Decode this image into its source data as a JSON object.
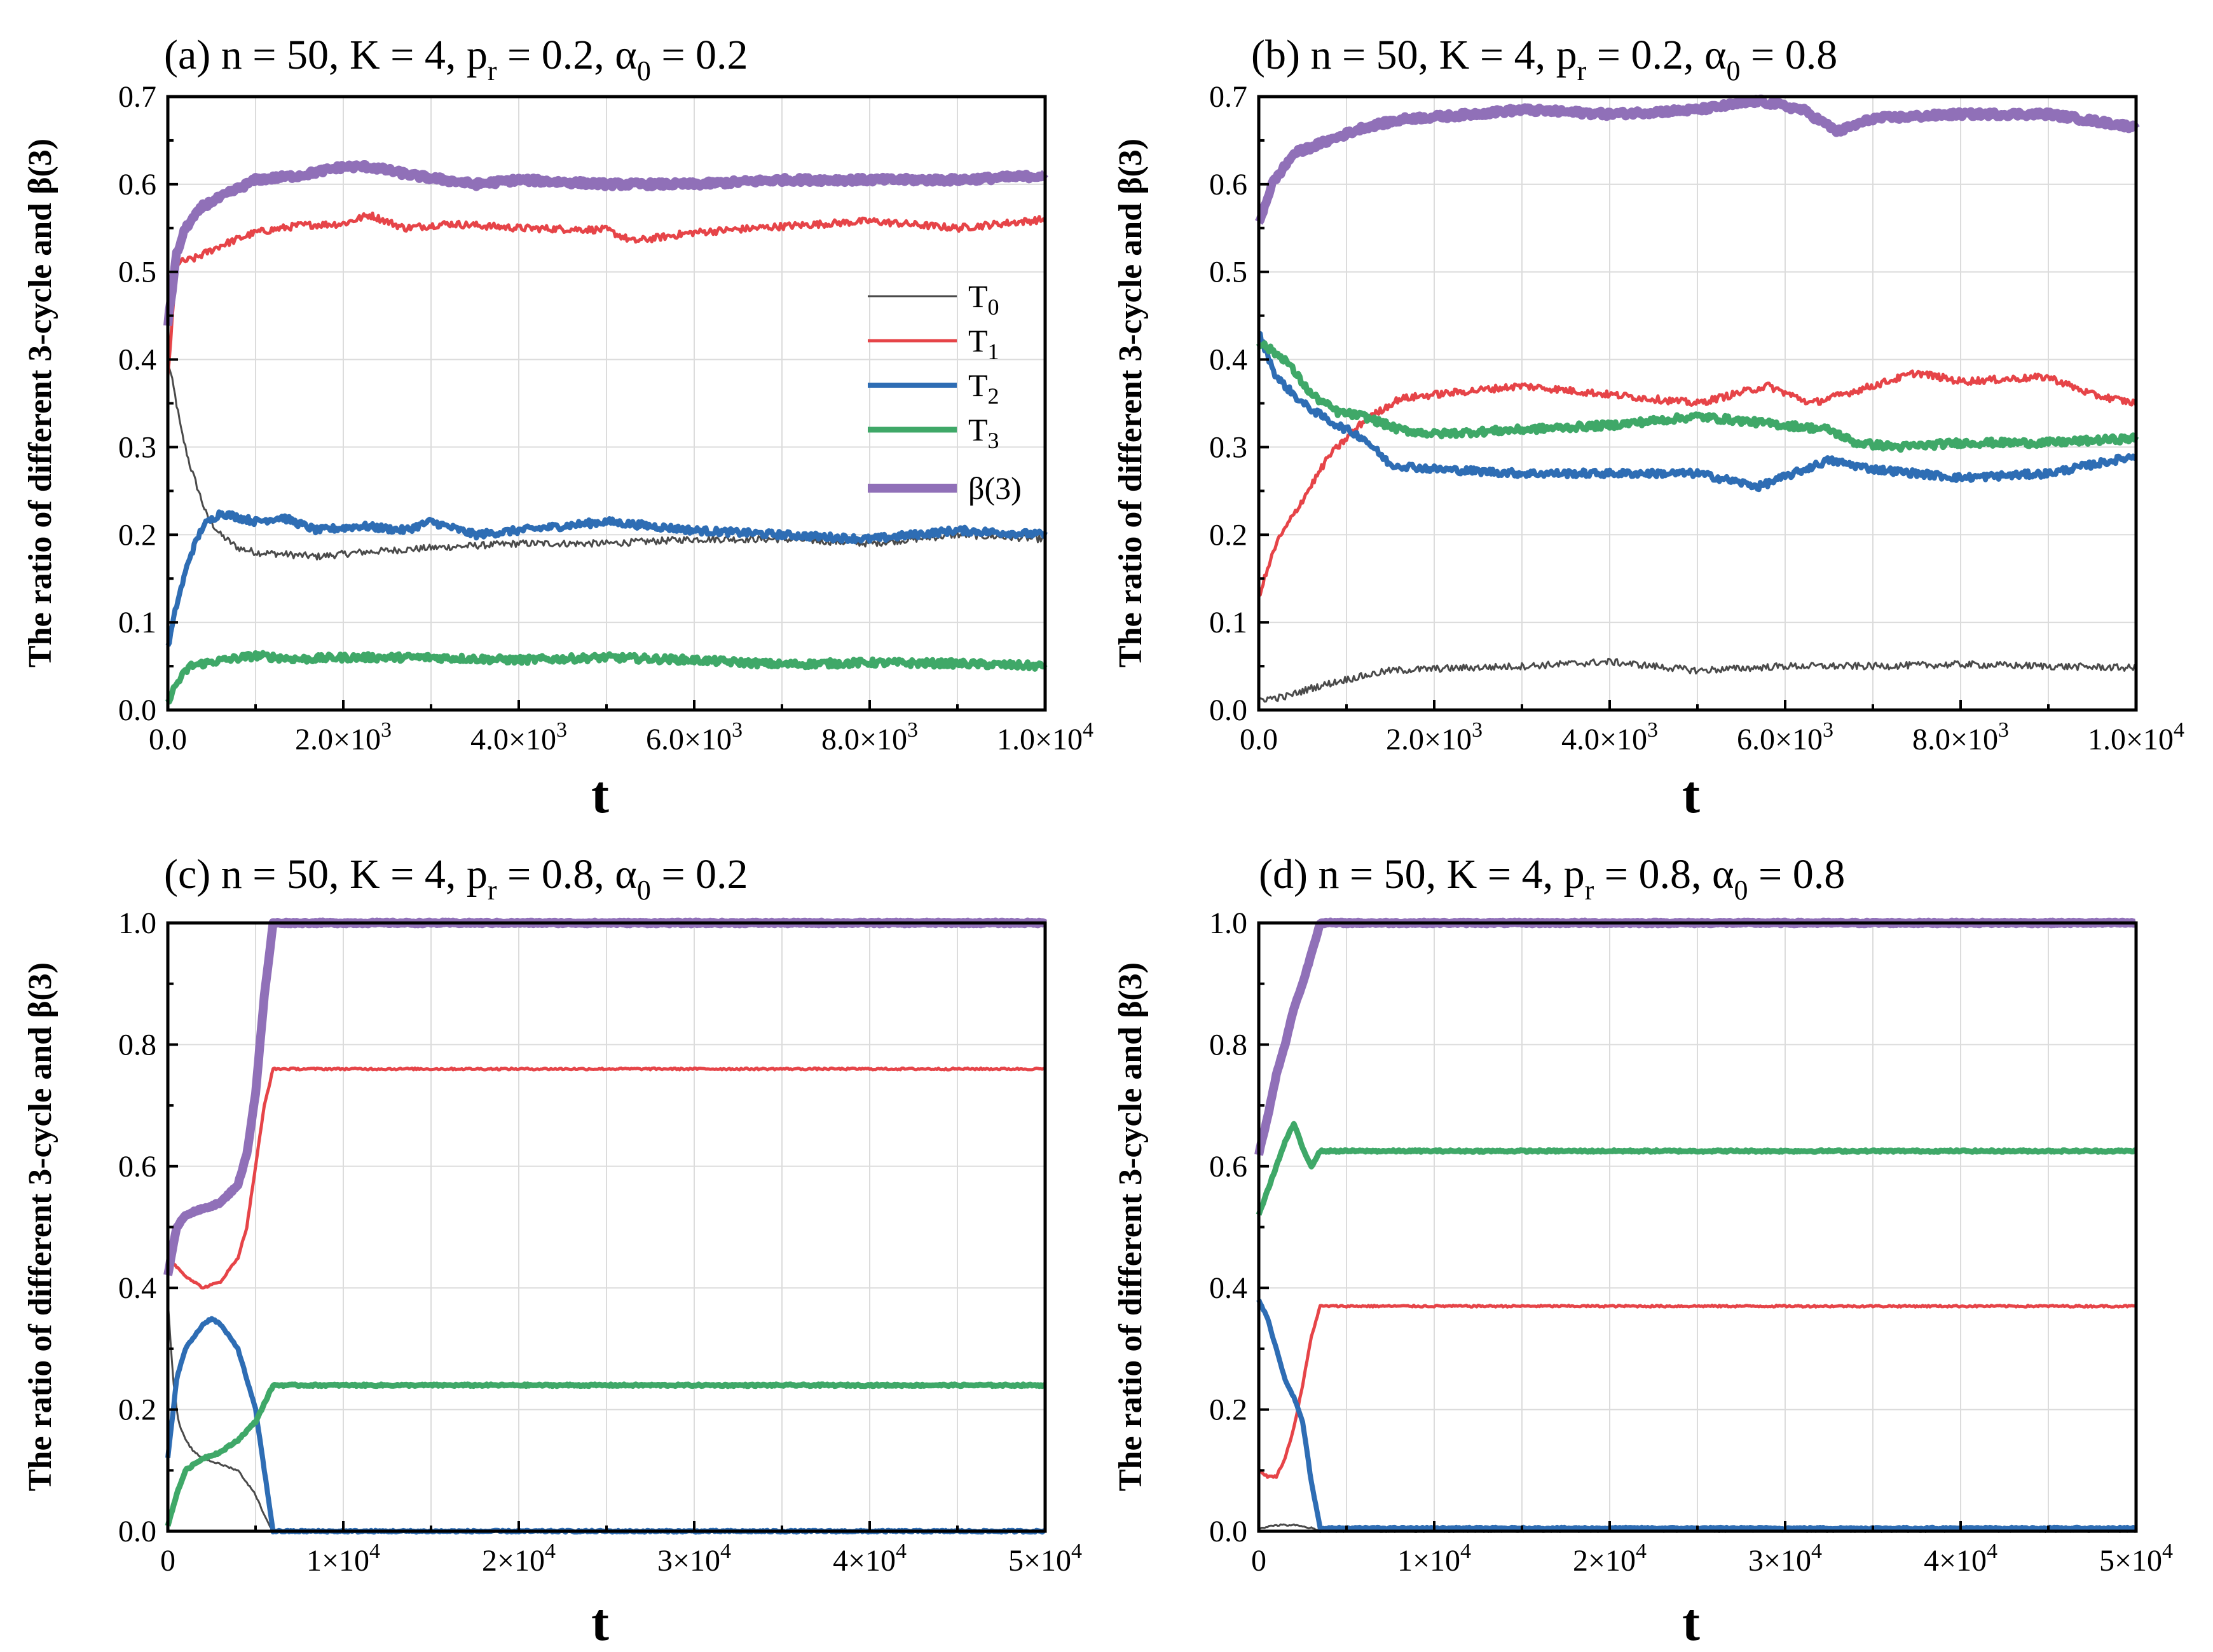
{
  "chart_data": [
    {
      "type": "line",
      "label": "(a)",
      "title_parts": {
        "n": "n = 50, K = 4, p",
        "sub_r": "r",
        "pr": " = 0.2, α",
        "sub_0": "0",
        "alpha": " = 0.2"
      },
      "ylabel": "The ratio of different 3-cycle and β(3)",
      "xlabel": "t",
      "xlim": [
        0,
        10000
      ],
      "ylim": [
        0,
        0.7
      ],
      "xticks": [
        0,
        2000,
        4000,
        6000,
        8000,
        10000
      ],
      "xtick_labels": [
        [
          "0.0",
          ""
        ],
        [
          "2.0×10",
          "3"
        ],
        [
          "4.0×10",
          "3"
        ],
        [
          "6.0×10",
          "3"
        ],
        [
          "8.0×10",
          "3"
        ],
        [
          "1.0×10",
          "4"
        ]
      ],
      "yticks": [
        0,
        0.1,
        0.2,
        0.3,
        0.4,
        0.5,
        0.6,
        0.7
      ],
      "ytick_labels": [
        "0.0",
        "0.1",
        "0.2",
        "0.3",
        "0.4",
        "0.5",
        "0.6",
        "0.7"
      ],
      "legend": true,
      "series": [
        {
          "name": "T0",
          "x": [
            0,
            80,
            150,
            250,
            350,
            450,
            600,
            800,
            1000,
            1300,
            1700,
            2200,
            3000,
            4000,
            5000,
            6000,
            7000,
            8000,
            9000,
            10000
          ],
          "values": [
            0.4,
            0.36,
            0.32,
            0.28,
            0.25,
            0.22,
            0.2,
            0.185,
            0.18,
            0.178,
            0.175,
            0.18,
            0.185,
            0.19,
            0.19,
            0.195,
            0.195,
            0.19,
            0.2,
            0.195
          ]
        },
        {
          "name": "T1",
          "x": [
            0,
            100,
            300,
            600,
            1000,
            1500,
            2000,
            2300,
            2700,
            3200,
            4000,
            5000,
            5300,
            6000,
            7000,
            8000,
            9000,
            10000
          ],
          "values": [
            0.38,
            0.51,
            0.515,
            0.53,
            0.545,
            0.553,
            0.555,
            0.565,
            0.55,
            0.555,
            0.55,
            0.548,
            0.535,
            0.545,
            0.552,
            0.558,
            0.55,
            0.56
          ]
        },
        {
          "name": "T2",
          "x": [
            0,
            100,
            250,
            400,
            600,
            800,
            1000,
            1300,
            1700,
            2200,
            2700,
            3000,
            3500,
            4000,
            4500,
            5000,
            5500,
            6000,
            7000,
            8000,
            9000,
            10000
          ],
          "values": [
            0.07,
            0.12,
            0.175,
            0.21,
            0.225,
            0.22,
            0.215,
            0.22,
            0.205,
            0.21,
            0.205,
            0.215,
            0.2,
            0.205,
            0.21,
            0.215,
            0.21,
            0.205,
            0.2,
            0.195,
            0.205,
            0.2
          ]
        },
        {
          "name": "T3",
          "x": [
            0,
            100,
            250,
            500,
            1000,
            1500,
            2000,
            3000,
            4000,
            5000,
            6000,
            7000,
            8000,
            9000,
            10000
          ],
          "values": [
            0.01,
            0.03,
            0.05,
            0.055,
            0.062,
            0.058,
            0.06,
            0.06,
            0.057,
            0.06,
            0.057,
            0.052,
            0.054,
            0.053,
            0.05
          ]
        },
        {
          "name": "β(3)",
          "x": [
            0,
            100,
            200,
            400,
            700,
            1000,
            1500,
            2000,
            2300,
            2800,
            3500,
            4000,
            5000,
            6000,
            7000,
            8000,
            9000,
            10000
          ],
          "values": [
            0.44,
            0.52,
            0.55,
            0.575,
            0.59,
            0.605,
            0.61,
            0.62,
            0.62,
            0.61,
            0.6,
            0.605,
            0.6,
            0.6,
            0.605,
            0.605,
            0.605,
            0.61
          ]
        }
      ]
    },
    {
      "type": "line",
      "label": "(b)",
      "title_parts": {
        "n": "n = 50, K = 4, p",
        "sub_r": "r",
        "pr": " = 0.2, α",
        "sub_0": "0",
        "alpha": " = 0.8"
      },
      "ylabel": "The ratio of different 3-cycle and β(3)",
      "xlabel": "t",
      "xlim": [
        0,
        10000
      ],
      "ylim": [
        0,
        0.7
      ],
      "xticks": [
        0,
        2000,
        4000,
        6000,
        8000,
        10000
      ],
      "xtick_labels": [
        [
          "0.0",
          ""
        ],
        [
          "2.0×10",
          "3"
        ],
        [
          "4.0×10",
          "3"
        ],
        [
          "6.0×10",
          "3"
        ],
        [
          "8.0×10",
          "3"
        ],
        [
          "1.0×10",
          "4"
        ]
      ],
      "yticks": [
        0,
        0.1,
        0.2,
        0.3,
        0.4,
        0.5,
        0.6,
        0.7
      ],
      "ytick_labels": [
        "0.0",
        "0.1",
        "0.2",
        "0.3",
        "0.4",
        "0.5",
        "0.6",
        "0.7"
      ],
      "legend": false,
      "series": [
        {
          "name": "T0",
          "x": [
            0,
            300,
            600,
            1000,
            1500,
            2000,
            3000,
            4000,
            5000,
            6000,
            7000,
            8000,
            9000,
            10000
          ],
          "values": [
            0.012,
            0.015,
            0.025,
            0.035,
            0.045,
            0.047,
            0.05,
            0.055,
            0.045,
            0.05,
            0.05,
            0.052,
            0.05,
            0.048
          ]
        },
        {
          "name": "T1",
          "x": [
            0,
            200,
            500,
            800,
            1200,
            1600,
            2000,
            2500,
            3000,
            4000,
            5000,
            5800,
            6300,
            7000,
            7500,
            8000,
            9000,
            9500,
            10000
          ],
          "values": [
            0.13,
            0.19,
            0.24,
            0.29,
            0.33,
            0.355,
            0.36,
            0.365,
            0.37,
            0.36,
            0.35,
            0.37,
            0.35,
            0.37,
            0.385,
            0.375,
            0.38,
            0.36,
            0.35
          ]
        },
        {
          "name": "T2",
          "x": [
            0,
            200,
            500,
            800,
            1200,
            1500,
            2000,
            3000,
            4000,
            5000,
            5700,
            6500,
            7000,
            8000,
            9000,
            10000
          ],
          "values": [
            0.43,
            0.38,
            0.35,
            0.33,
            0.31,
            0.28,
            0.275,
            0.27,
            0.27,
            0.27,
            0.255,
            0.285,
            0.275,
            0.265,
            0.27,
            0.29
          ]
        },
        {
          "name": "T3",
          "x": [
            0,
            300,
            600,
            900,
            1200,
            1600,
            2000,
            3000,
            4000,
            5000,
            6000,
            6500,
            6800,
            7300,
            8000,
            9000,
            10000
          ],
          "values": [
            0.42,
            0.4,
            0.36,
            0.34,
            0.335,
            0.32,
            0.315,
            0.32,
            0.325,
            0.335,
            0.325,
            0.32,
            0.305,
            0.3,
            0.305,
            0.305,
            0.31
          ]
        },
        {
          "name": "β(3)",
          "x": [
            0,
            150,
            400,
            800,
            1200,
            1700,
            2200,
            3000,
            4000,
            5000,
            5700,
            6200,
            6600,
            7000,
            8000,
            9000,
            10000
          ],
          "values": [
            0.555,
            0.6,
            0.635,
            0.65,
            0.665,
            0.675,
            0.678,
            0.685,
            0.68,
            0.685,
            0.695,
            0.685,
            0.66,
            0.675,
            0.68,
            0.68,
            0.665
          ]
        }
      ]
    },
    {
      "type": "line",
      "label": "(c)",
      "title_parts": {
        "n": "n = 50, K = 4, p",
        "sub_r": "r",
        "pr": " = 0.8, α",
        "sub_0": "0",
        "alpha": " = 0.2"
      },
      "ylabel": "The ratio of different 3-cycle and β(3)",
      "xlabel": "t",
      "xlim": [
        0,
        50000
      ],
      "ylim": [
        0,
        1.0
      ],
      "xticks": [
        0,
        10000,
        20000,
        30000,
        40000,
        50000
      ],
      "xtick_labels": [
        [
          "0",
          ""
        ],
        [
          "1×10",
          "4"
        ],
        [
          "2×10",
          "4"
        ],
        [
          "3×10",
          "4"
        ],
        [
          "4×10",
          "4"
        ],
        [
          "5×10",
          "4"
        ]
      ],
      "yticks": [
        0,
        0.2,
        0.4,
        0.6,
        0.8,
        1.0
      ],
      "ytick_labels": [
        "0.0",
        "0.2",
        "0.4",
        "0.6",
        "0.8",
        "1.0"
      ],
      "legend": false,
      "series": [
        {
          "name": "T0",
          "x": [
            0,
            300,
            600,
            1000,
            1500,
            2000,
            3000,
            4000,
            5000,
            5600,
            6000,
            50000
          ],
          "values": [
            0.38,
            0.25,
            0.18,
            0.15,
            0.13,
            0.12,
            0.11,
            0.1,
            0.06,
            0.02,
            0,
            0
          ]
        },
        {
          "name": "T1",
          "x": [
            0,
            1000,
            2000,
            3000,
            4000,
            4500,
            5000,
            5500,
            6000,
            50000
          ],
          "values": [
            0.45,
            0.42,
            0.4,
            0.41,
            0.45,
            0.5,
            0.6,
            0.7,
            0.76,
            0.76
          ]
        },
        {
          "name": "T2",
          "x": [
            0,
            500,
            1000,
            2000,
            2500,
            3000,
            4000,
            5000,
            5600,
            6000,
            50000
          ],
          "values": [
            0.12,
            0.25,
            0.3,
            0.34,
            0.35,
            0.34,
            0.3,
            0.2,
            0.08,
            0,
            0
          ]
        },
        {
          "name": "T3",
          "x": [
            0,
            500,
            1000,
            2000,
            3000,
            4000,
            5000,
            6000,
            50000
          ],
          "values": [
            0.01,
            0.06,
            0.1,
            0.12,
            0.13,
            0.15,
            0.18,
            0.24,
            0.24
          ]
        },
        {
          "name": "β(3)",
          "x": [
            0,
            500,
            1000,
            2000,
            3000,
            4000,
            4500,
            5000,
            5500,
            6000,
            50000
          ],
          "values": [
            0.42,
            0.5,
            0.52,
            0.53,
            0.54,
            0.57,
            0.62,
            0.72,
            0.88,
            1.0,
            1.0
          ]
        }
      ]
    },
    {
      "type": "line",
      "label": "(d)",
      "title_parts": {
        "n": "n = 50, K = 4, p",
        "sub_r": "r",
        "pr": " = 0.8, α",
        "sub_0": "0",
        "alpha": " = 0.8"
      },
      "ylabel": "The ratio of different 3-cycle and β(3)",
      "xlabel": "t",
      "xlim": [
        0,
        50000
      ],
      "ylim": [
        0,
        1.0
      ],
      "xticks": [
        0,
        10000,
        20000,
        30000,
        40000,
        50000
      ],
      "xtick_labels": [
        [
          "0",
          ""
        ],
        [
          "1×10",
          "4"
        ],
        [
          "2×10",
          "4"
        ],
        [
          "3×10",
          "4"
        ],
        [
          "4×10",
          "4"
        ],
        [
          "5×10",
          "4"
        ]
      ],
      "yticks": [
        0,
        0.2,
        0.4,
        0.6,
        0.8,
        1.0
      ],
      "ytick_labels": [
        "0.0",
        "0.2",
        "0.4",
        "0.6",
        "0.8",
        "1.0"
      ],
      "legend": false,
      "series": [
        {
          "name": "T0",
          "x": [
            0,
            1000,
            2000,
            3000,
            3500,
            50000
          ],
          "values": [
            0.005,
            0.01,
            0.01,
            0.005,
            0,
            0
          ]
        },
        {
          "name": "T1",
          "x": [
            0,
            500,
            1000,
            1500,
            2000,
            2500,
            3000,
            3500,
            50000
          ],
          "values": [
            0.1,
            0.09,
            0.09,
            0.12,
            0.17,
            0.24,
            0.32,
            0.37,
            0.37
          ]
        },
        {
          "name": "T2",
          "x": [
            0,
            500,
            1000,
            1500,
            2000,
            2500,
            3000,
            3500,
            50000
          ],
          "values": [
            0.38,
            0.35,
            0.3,
            0.25,
            0.22,
            0.18,
            0.08,
            0.005,
            0.005
          ]
        },
        {
          "name": "T3",
          "x": [
            0,
            500,
            1000,
            1500,
            2000,
            2500,
            3000,
            3500,
            50000
          ],
          "values": [
            0.52,
            0.56,
            0.6,
            0.64,
            0.67,
            0.63,
            0.6,
            0.625,
            0.625
          ]
        },
        {
          "name": "β(3)",
          "x": [
            0,
            500,
            1000,
            1500,
            2000,
            2500,
            3000,
            3500,
            50000
          ],
          "values": [
            0.62,
            0.68,
            0.75,
            0.8,
            0.86,
            0.9,
            0.95,
            1.0,
            1.0
          ]
        }
      ]
    }
  ],
  "legend_entries": [
    {
      "label": "T",
      "sub": "0"
    },
    {
      "label": "T",
      "sub": "1"
    },
    {
      "label": "T",
      "sub": "2"
    },
    {
      "label": "T",
      "sub": "3"
    },
    {
      "label": "β(3)",
      "sub": ""
    }
  ],
  "colors": {
    "T0": "#4a4a4a",
    "T1": "#e64448",
    "T2": "#2e6db4",
    "T3": "#3fa868",
    "beta": "#9070b8"
  }
}
